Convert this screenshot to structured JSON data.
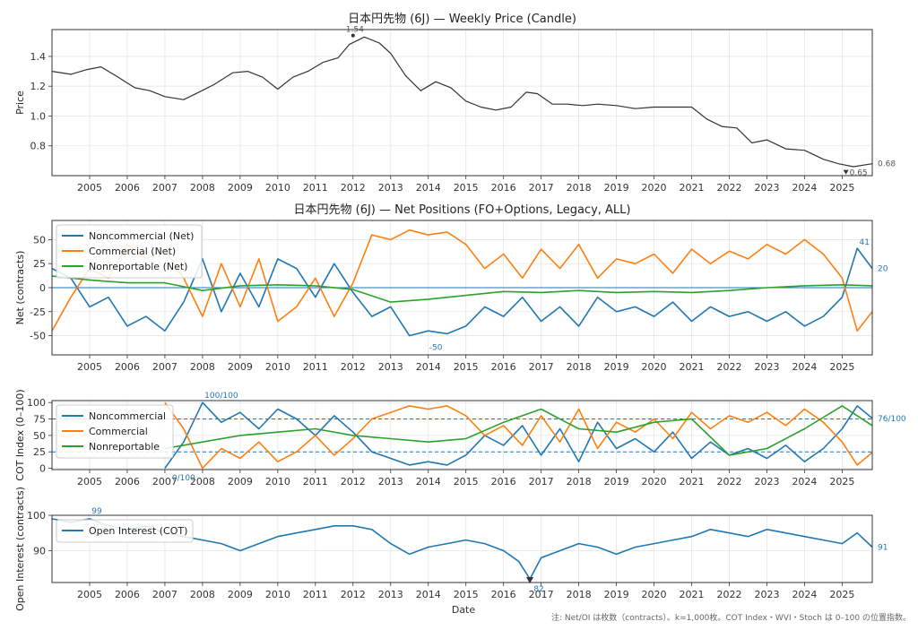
{
  "figure": {
    "note": "注: Net/OI は枚数（contracts）。k=1,000枚。COT Index・WVI・Stoch は 0–100 の位置指数。",
    "x_label": "Date",
    "x_ticks": [
      "2005",
      "2006",
      "2007",
      "2008",
      "2009",
      "2010",
      "2011",
      "2012",
      "2013",
      "2014",
      "2015",
      "2016",
      "2017",
      "2018",
      "2019",
      "2020",
      "2021",
      "2022",
      "2023",
      "2024",
      "2025"
    ],
    "colors": {
      "noncommercial": "#1f77b4",
      "commercial": "#ff7f0e",
      "nonreportable": "#2ca02c",
      "price": "#333333"
    }
  },
  "chart_data": [
    {
      "id": "price",
      "type": "line",
      "title": "日本円先物 (6J) — Weekly Price (Candle)",
      "ylabel": "Price",
      "ylim": [
        0.6,
        1.58
      ],
      "yticks": [
        "0.8",
        "1.0",
        "1.2",
        "1.4"
      ],
      "xlim": [
        2004.0,
        2025.8
      ],
      "series": [
        {
          "x": [
            2004.0,
            2004.5,
            2004.9,
            2005.3,
            2005.7,
            2006.2,
            2006.6,
            2007.0,
            2007.5,
            2007.9,
            2008.3,
            2008.8,
            2009.2,
            2009.6,
            2010.0,
            2010.4,
            2010.8,
            2011.2,
            2011.6,
            2011.9,
            2012.3,
            2012.7,
            2013.0,
            2013.4,
            2013.8,
            2014.2,
            2014.6,
            2015.0,
            2015.4,
            2015.8,
            2016.2,
            2016.6,
            2016.9,
            2017.3,
            2017.7,
            2018.1,
            2018.5,
            2019.0,
            2019.5,
            2020.0,
            2020.5,
            2021.0,
            2021.4,
            2021.8,
            2022.2,
            2022.6,
            2023.0,
            2023.5,
            2024.0,
            2024.5,
            2024.9,
            2025.3,
            2025.8
          ],
          "y": [
            1.3,
            1.28,
            1.31,
            1.33,
            1.27,
            1.19,
            1.17,
            1.13,
            1.11,
            1.16,
            1.21,
            1.29,
            1.3,
            1.26,
            1.18,
            1.26,
            1.3,
            1.36,
            1.39,
            1.48,
            1.53,
            1.49,
            1.42,
            1.27,
            1.17,
            1.23,
            1.19,
            1.1,
            1.06,
            1.04,
            1.06,
            1.16,
            1.15,
            1.08,
            1.08,
            1.07,
            1.08,
            1.07,
            1.05,
            1.06,
            1.06,
            1.06,
            0.98,
            0.93,
            0.92,
            0.82,
            0.84,
            0.78,
            0.77,
            0.71,
            0.68,
            0.66,
            0.68
          ]
        }
      ],
      "annotations": [
        {
          "x": 2012.0,
          "y": 1.54,
          "label": "1.54"
        },
        {
          "x": 2025.1,
          "y": 0.65,
          "label": "0.65"
        },
        {
          "x": 2025.8,
          "y": 0.68,
          "label": "0.68"
        }
      ]
    },
    {
      "id": "net",
      "type": "line",
      "title": "日本円先物 (6J) — Net Positions (FO+Options, Legacy, ALL)",
      "ylabel": "Net (contracts)",
      "ylim": [
        -70,
        70
      ],
      "yticks": [
        "-50",
        "-25",
        "0",
        "25",
        "50"
      ],
      "xlim": [
        2004.0,
        2025.8
      ],
      "legend": "top-left",
      "series": [
        {
          "name": "Noncommercial (Net)",
          "color": "#1f77b4",
          "x": [
            2004.0,
            2004.5,
            2005.0,
            2005.5,
            2006.0,
            2006.5,
            2007.0,
            2007.5,
            2008.0,
            2008.5,
            2009.0,
            2009.5,
            2010.0,
            2010.5,
            2011.0,
            2011.5,
            2012.0,
            2012.5,
            2013.0,
            2013.5,
            2014.0,
            2014.5,
            2015.0,
            2015.5,
            2016.0,
            2016.5,
            2017.0,
            2017.5,
            2018.0,
            2018.5,
            2019.0,
            2019.5,
            2020.0,
            2020.5,
            2021.0,
            2021.5,
            2022.0,
            2022.5,
            2023.0,
            2023.5,
            2024.0,
            2024.5,
            2025.0,
            2025.4,
            2025.8
          ],
          "y": [
            20,
            10,
            -20,
            -10,
            -40,
            -30,
            -45,
            -15,
            30,
            -25,
            15,
            -20,
            30,
            20,
            -10,
            25,
            -5,
            -30,
            -20,
            -50,
            -45,
            -48,
            -40,
            -20,
            -30,
            -10,
            -35,
            -20,
            -40,
            -10,
            -25,
            -20,
            -30,
            -15,
            -35,
            -20,
            -30,
            -25,
            -35,
            -25,
            -40,
            -30,
            -10,
            41,
            20
          ]
        },
        {
          "name": "Commercial (Net)",
          "color": "#ff7f0e",
          "x": [
            2004.0,
            2004.5,
            2005.0,
            2005.5,
            2006.0,
            2006.5,
            2007.0,
            2007.5,
            2008.0,
            2008.5,
            2009.0,
            2009.5,
            2010.0,
            2010.5,
            2011.0,
            2011.5,
            2012.0,
            2012.5,
            2013.0,
            2013.5,
            2014.0,
            2014.5,
            2015.0,
            2015.5,
            2016.0,
            2016.5,
            2017.0,
            2017.5,
            2018.0,
            2018.5,
            2019.0,
            2019.5,
            2020.0,
            2020.5,
            2021.0,
            2021.5,
            2022.0,
            2022.5,
            2023.0,
            2023.5,
            2024.0,
            2024.5,
            2025.0,
            2025.4,
            2025.8
          ],
          "y": [
            -45,
            -10,
            20,
            10,
            45,
            30,
            40,
            10,
            -30,
            25,
            -20,
            30,
            -35,
            -20,
            10,
            -30,
            5,
            55,
            50,
            60,
            55,
            58,
            45,
            20,
            35,
            10,
            40,
            20,
            45,
            10,
            30,
            25,
            35,
            15,
            40,
            25,
            38,
            30,
            45,
            35,
            50,
            35,
            10,
            -45,
            -25
          ]
        },
        {
          "name": "Nonreportable (Net)",
          "color": "#2ca02c",
          "x": [
            2004.0,
            2005.0,
            2006.0,
            2007.0,
            2008.0,
            2009.0,
            2010.0,
            2011.0,
            2012.0,
            2013.0,
            2014.0,
            2015.0,
            2016.0,
            2017.0,
            2018.0,
            2019.0,
            2020.0,
            2021.0,
            2022.0,
            2023.0,
            2024.0,
            2025.0,
            2025.8
          ],
          "y": [
            12,
            8,
            5,
            5,
            -3,
            2,
            3,
            2,
            -2,
            -15,
            -12,
            -8,
            -4,
            -5,
            -3,
            -5,
            -4,
            -5,
            -3,
            0,
            2,
            3,
            2
          ]
        }
      ],
      "annotations": [
        {
          "x": 2014.2,
          "y": -50,
          "label": "-50"
        },
        {
          "x": 2025.4,
          "y": 41,
          "label": "41"
        },
        {
          "x": 2025.8,
          "y": 20,
          "label": "20"
        }
      ]
    },
    {
      "id": "cot",
      "type": "line",
      "ylabel": "COT Index (0–100)",
      "ylim": [
        -2,
        103
      ],
      "yticks": [
        "0",
        "25",
        "50",
        "75",
        "100"
      ],
      "reference_lines": [
        75,
        25
      ],
      "xlim": [
        2004.0,
        2025.8
      ],
      "legend": "top-left",
      "series": [
        {
          "name": "Noncommercial",
          "color": "#1f77b4",
          "x": [
            2007.0,
            2007.5,
            2008.0,
            2008.5,
            2009.0,
            2009.5,
            2010.0,
            2010.5,
            2011.0,
            2011.5,
            2012.0,
            2012.5,
            2013.0,
            2013.5,
            2014.0,
            2014.5,
            2015.0,
            2015.5,
            2016.0,
            2016.5,
            2017.0,
            2017.5,
            2018.0,
            2018.5,
            2019.0,
            2019.5,
            2020.0,
            2020.5,
            2021.0,
            2021.5,
            2022.0,
            2022.5,
            2023.0,
            2023.5,
            2024.0,
            2024.5,
            2025.0,
            2025.4,
            2025.8
          ],
          "y": [
            0,
            40,
            100,
            70,
            85,
            60,
            90,
            75,
            50,
            80,
            55,
            25,
            15,
            5,
            10,
            5,
            20,
            50,
            35,
            65,
            20,
            60,
            10,
            70,
            30,
            45,
            25,
            55,
            15,
            40,
            20,
            30,
            15,
            35,
            10,
            30,
            60,
            95,
            76
          ]
        },
        {
          "name": "Commercial",
          "color": "#ff7f0e",
          "x": [
            2007.0,
            2007.5,
            2008.0,
            2008.5,
            2009.0,
            2009.5,
            2010.0,
            2010.5,
            2011.0,
            2011.5,
            2012.0,
            2012.5,
            2013.0,
            2013.5,
            2014.0,
            2014.5,
            2015.0,
            2015.5,
            2016.0,
            2016.5,
            2017.0,
            2017.5,
            2018.0,
            2018.5,
            2019.0,
            2019.5,
            2020.0,
            2020.5,
            2021.0,
            2021.5,
            2022.0,
            2022.5,
            2023.0,
            2023.5,
            2024.0,
            2024.5,
            2025.0,
            2025.4,
            2025.8
          ],
          "y": [
            100,
            60,
            0,
            30,
            15,
            40,
            10,
            25,
            50,
            20,
            45,
            75,
            85,
            95,
            90,
            95,
            80,
            50,
            65,
            35,
            80,
            40,
            90,
            30,
            70,
            55,
            75,
            45,
            85,
            60,
            80,
            70,
            85,
            65,
            90,
            70,
            40,
            5,
            24
          ]
        },
        {
          "name": "Nonreportable",
          "color": "#2ca02c",
          "x": [
            2007.0,
            2008.0,
            2009.0,
            2010.0,
            2011.0,
            2012.0,
            2013.0,
            2014.0,
            2015.0,
            2016.0,
            2017.0,
            2018.0,
            2019.0,
            2020.0,
            2021.0,
            2022.0,
            2023.0,
            2024.0,
            2025.0,
            2025.8
          ],
          "y": [
            30,
            40,
            50,
            55,
            60,
            50,
            45,
            40,
            45,
            70,
            90,
            60,
            55,
            70,
            75,
            20,
            30,
            60,
            95,
            65
          ]
        }
      ],
      "annotations": [
        {
          "x": 2008.5,
          "y": 100,
          "label": "100/100"
        },
        {
          "x": 2007.5,
          "y": 0,
          "label": "0/100"
        },
        {
          "x": 2025.8,
          "y": 76,
          "label": "76/100"
        }
      ]
    },
    {
      "id": "oi",
      "type": "line",
      "ylabel": "Open Interest (contracts)",
      "ylim": [
        81,
        100
      ],
      "yticks": [
        "90",
        "100"
      ],
      "xlim": [
        2004.0,
        2025.8
      ],
      "legend": "top-left",
      "series": [
        {
          "name": "Open Interest (COT)",
          "color": "#1f77b4",
          "x": [
            2004.0,
            2004.5,
            2005.0,
            2005.5,
            2006.0,
            2006.5,
            2007.0,
            2007.5,
            2008.0,
            2008.5,
            2009.0,
            2009.5,
            2010.0,
            2010.5,
            2011.0,
            2011.5,
            2012.0,
            2012.5,
            2013.0,
            2013.5,
            2014.0,
            2014.5,
            2015.0,
            2015.5,
            2016.0,
            2016.4,
            2016.7,
            2017.0,
            2017.5,
            2018.0,
            2018.5,
            2019.0,
            2019.5,
            2020.0,
            2020.5,
            2021.0,
            2021.5,
            2022.0,
            2022.5,
            2023.0,
            2023.5,
            2024.0,
            2024.5,
            2025.0,
            2025.4,
            2025.8
          ],
          "y": [
            99,
            98,
            99,
            97,
            96,
            97,
            95,
            94,
            93,
            92,
            90,
            92,
            94,
            95,
            96,
            97,
            97,
            96,
            92,
            89,
            91,
            92,
            93,
            92,
            90,
            87,
            82,
            88,
            90,
            92,
            91,
            89,
            91,
            92,
            93,
            94,
            96,
            95,
            94,
            96,
            95,
            94,
            93,
            92,
            95,
            91
          ]
        }
      ],
      "annotations": [
        {
          "x": 2005.0,
          "y": 99,
          "label": "99"
        },
        {
          "x": 2016.7,
          "y": 82,
          "label": "82"
        },
        {
          "x": 2025.8,
          "y": 91,
          "label": "91"
        }
      ]
    }
  ]
}
